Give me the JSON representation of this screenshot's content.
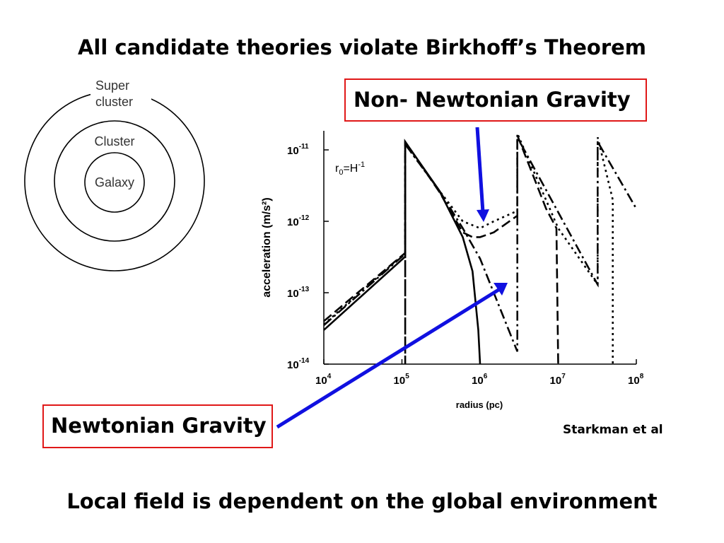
{
  "title": "All candidate theories violate Birkhoff’s Theorem",
  "footer": "Local field is dependent on the global environment",
  "credit": "Starkman et al",
  "labels": {
    "non_newtonian": "Non- Newtonian Gravity",
    "newtonian": "Newtonian Gravity"
  },
  "nested_circles": {
    "supercluster_line1": "Super",
    "supercluster_line2": "cluster",
    "cluster": "Cluster",
    "galaxy": "Galaxy"
  },
  "colors": {
    "box_border": "#e01818",
    "arrow": "#1010e0",
    "text": "#000000"
  },
  "chart_data": {
    "type": "line",
    "title": "",
    "xlabel": "radius (pc)",
    "ylabel": "acceleration (m/s²)",
    "x_scale": "log",
    "y_scale": "log",
    "xlim": [
      10000,
      100000000
    ],
    "ylim": [
      1e-14,
      1.5e-11
    ],
    "x_ticks": [
      {
        "base": "10",
        "exp": "4",
        "value": 10000
      },
      {
        "base": "10",
        "exp": "5",
        "value": 100000
      },
      {
        "base": "10",
        "exp": "6",
        "value": 1000000
      },
      {
        "base": "10",
        "exp": "7",
        "value": 10000000
      },
      {
        "base": "10",
        "exp": "8",
        "value": 100000000
      }
    ],
    "y_ticks": [
      {
        "base": "10",
        "exp": "-11",
        "value": 1e-11
      },
      {
        "base": "10",
        "exp": "-12",
        "value": 1e-12
      },
      {
        "base": "10",
        "exp": "-13",
        "value": 1e-13
      },
      {
        "base": "10",
        "exp": "-14",
        "value": 1e-14
      }
    ],
    "annotation": {
      "main": "r",
      "sub": "0",
      "rest": "=H",
      "sup": "-1"
    },
    "grid": false,
    "series": [
      {
        "style": "solid",
        "points": [
          [
            10000,
            3e-14
          ],
          [
            110000,
            3.2e-13
          ],
          [
            110000,
            1.3e-11
          ],
          [
            300000,
            2.7e-12
          ],
          [
            600000,
            6e-13
          ],
          [
            800000,
            2e-13
          ],
          [
            950000,
            3e-14
          ],
          [
            1000000,
            1e-14
          ]
        ]
      },
      {
        "style": "dash",
        "points": [
          [
            10000,
            4e-14
          ],
          [
            110000,
            3.6e-13
          ],
          [
            110000,
            1.3e-11
          ],
          [
            300000,
            2.6e-12
          ],
          [
            600000,
            7e-13
          ],
          [
            800000,
            6e-13
          ],
          [
            1000000,
            6e-13
          ],
          [
            1500000,
            7e-13
          ],
          [
            3000000,
            1.2e-12
          ],
          [
            3000000,
            1.6e-11
          ],
          [
            7000000,
            1.5e-12
          ],
          [
            9500000,
            8e-13
          ],
          [
            10000000,
            1e-14
          ]
        ]
      },
      {
        "style": "dashdot",
        "points": [
          [
            10000,
            3.5e-14
          ],
          [
            110000,
            3.5e-13
          ],
          [
            110000,
            1e-14
          ],
          [
            110000,
            1.2e-11
          ],
          [
            300000,
            2.7e-12
          ],
          [
            600000,
            8e-13
          ],
          [
            1000000,
            3e-13
          ],
          [
            3000000,
            1.5e-14
          ],
          [
            3000000,
            1.5e-11
          ],
          [
            32000000,
            1.3e-13
          ],
          [
            32000000,
            1.3e-11
          ],
          [
            100000000,
            1.5e-12
          ]
        ]
      },
      {
        "style": "dot",
        "points": [
          [
            10000,
            3.6e-14
          ],
          [
            110000,
            3.6e-13
          ],
          [
            110000,
            1.2e-11
          ],
          [
            300000,
            2.7e-12
          ],
          [
            600000,
            1e-12
          ],
          [
            1000000,
            8e-13
          ],
          [
            1500000,
            1e-12
          ],
          [
            3000000,
            1.4e-12
          ],
          [
            3000000,
            1.7e-11
          ],
          [
            10000000,
            8e-13
          ],
          [
            32000000,
            1.3e-13
          ],
          [
            32000000,
            1.5e-11
          ],
          [
            50000000,
            2e-12
          ],
          [
            50000000,
            1e-14
          ]
        ]
      }
    ]
  }
}
